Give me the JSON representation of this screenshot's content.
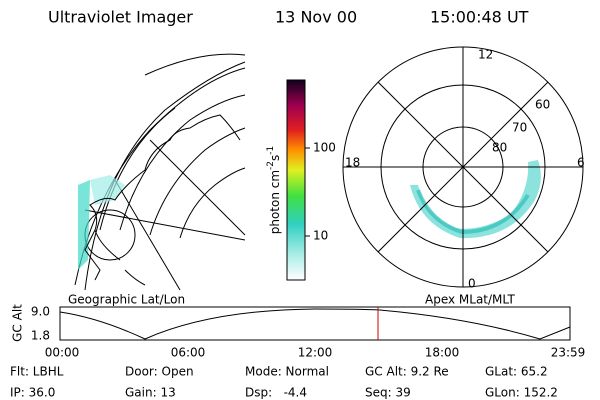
{
  "header": {
    "title": "Ultraviolet Imager",
    "date": "13 Nov 00",
    "time": "15:00:48 UT"
  },
  "map": {
    "label": "Geographic Lat/Lon"
  },
  "colorbar": {
    "label": [
      "photon cm",
      "-2",
      "s",
      "-1"
    ],
    "ticks": [
      "100",
      "10"
    ]
  },
  "polar": {
    "label": "Apex MLat/MLT",
    "hours": [
      "12",
      "18",
      "6",
      "0"
    ],
    "latitudes": [
      "60",
      "70",
      "80"
    ]
  },
  "timeline": {
    "axis_label": "GC Alt",
    "yticks": [
      "9.0",
      "1.8"
    ],
    "xticks": [
      "00:00",
      "06:00",
      "12:00",
      "18:00",
      "23:59"
    ]
  },
  "footer": {
    "rows": [
      [
        "Flt: LBHL",
        "Door: Open",
        "Mode: Normal",
        "GC Alt: 9.2 Re",
        "GLat: 65.2"
      ],
      [
        "IP: 36.0",
        "Gain: 13",
        "Dsp:   -4.4",
        "Seq: 39",
        "GLon: 152.2"
      ]
    ]
  }
}
